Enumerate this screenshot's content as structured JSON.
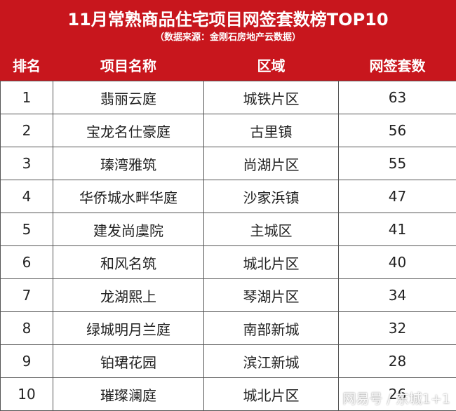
{
  "header": {
    "title": "11月常熟商品住宅项目网签套数榜TOP10",
    "subtitle": "（数据来源：金刚石房地产云数据）"
  },
  "table": {
    "columns": [
      "排名",
      "项目名称",
      "区域",
      "网签套数"
    ],
    "rows": [
      [
        1,
        "翡丽云庭",
        "城铁片区",
        63
      ],
      [
        2,
        "宝龙名仕豪庭",
        "古里镇",
        56
      ],
      [
        3,
        "瑧湾雅筑",
        "尚湖片区",
        55
      ],
      [
        4,
        "华侨城水畔华庭",
        "沙家浜镇",
        47
      ],
      [
        5,
        "建发尚虞院",
        "主城区",
        41
      ],
      [
        6,
        "和风名筑",
        "城北片区",
        40
      ],
      [
        7,
        "龙湖熙上",
        "琴湖片区",
        34
      ],
      [
        8,
        "绿城明月兰庭",
        "南部新城",
        32
      ],
      [
        9,
        "铂珺花园",
        "滨江新城",
        28
      ],
      [
        10,
        "璀璨澜庭",
        "城北片区",
        26
      ]
    ]
  },
  "watermark": "网易号 / 东城1+1"
}
